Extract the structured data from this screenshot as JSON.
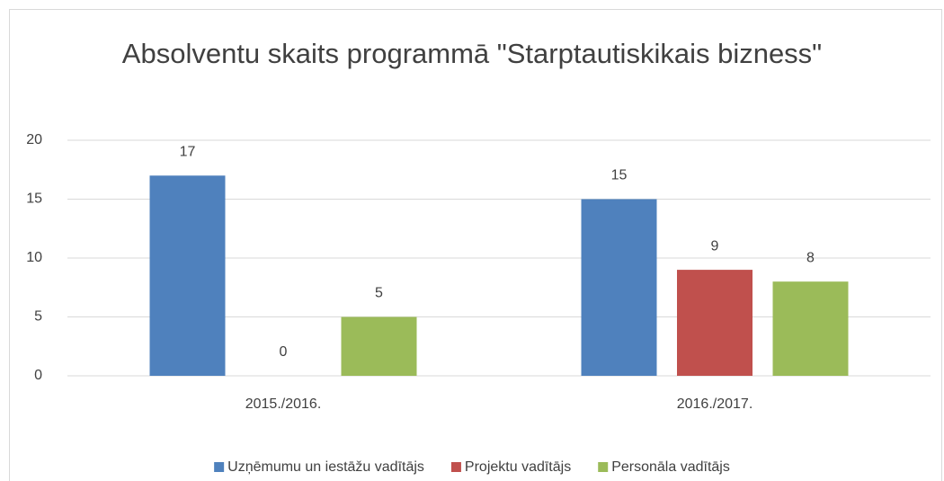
{
  "chart_data": {
    "type": "bar",
    "title": "Absolventu skaits programmā \"Starptautiskikais bizness\"",
    "categories": [
      "2015./2016.",
      "2016./2017."
    ],
    "series": [
      {
        "name": "Uzņēmumu un iestāžu vadītājs",
        "color": "#4f81bd",
        "values": [
          17,
          15
        ]
      },
      {
        "name": "Projektu vadītājs",
        "color": "#c0504d",
        "values": [
          0,
          9
        ]
      },
      {
        "name": "Personāla vadītājs",
        "color": "#9bbb59",
        "values": [
          5,
          8
        ]
      }
    ],
    "ylim": [
      0,
      20
    ],
    "yticks": [
      0,
      5,
      10,
      15,
      20
    ],
    "grid": true,
    "legend": "bottom"
  }
}
